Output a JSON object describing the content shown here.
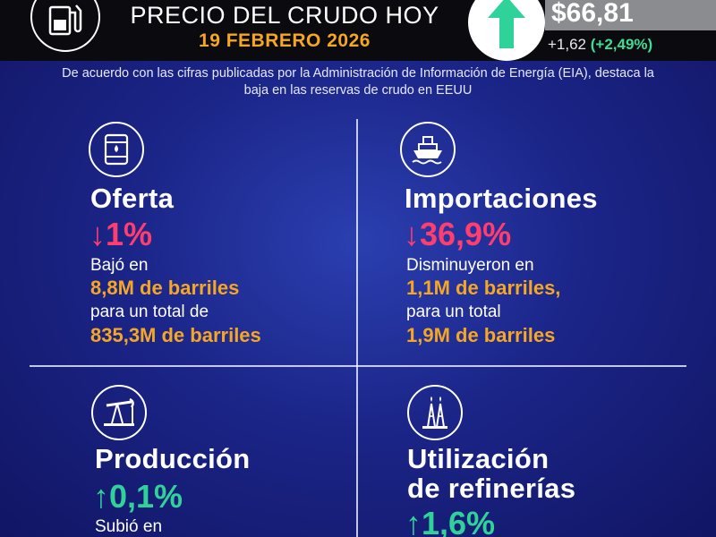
{
  "header": {
    "title": "PRECIO DEL CRUDO HOY",
    "date": "19 FEBRERO 2026",
    "price": "$66,81",
    "change_abs": "+1,62",
    "change_pct": "(+2,49%)",
    "pump_icon": "fuel-pump-icon",
    "arrow_icon": "arrow-up-icon"
  },
  "intro": "De acuerdo con las cifras publicadas por la Administración de Información de Energía (EIA), destaca la baja en las reservas de crudo en EEUU",
  "sections": {
    "oferta": {
      "icon": "oil-barrel-icon",
      "title": "Oferta",
      "change": "↓1%",
      "line1": "Bajó en",
      "line2": "8,8M de barriles",
      "line3": "para un total de",
      "line4": "835,3M de barriles"
    },
    "importaciones": {
      "icon": "ship-icon",
      "title": "Importaciones",
      "change": "↓36,9%",
      "line1": "Disminuyeron en",
      "line2": "1,1M de barriles,",
      "line3": "para un total",
      "line4": "1,9M de barriles"
    },
    "produccion": {
      "icon": "pumpjack-icon",
      "title": "Producción",
      "change": "↑0,1%",
      "line1": "Subió en"
    },
    "refinerias": {
      "icon": "refinery-icon",
      "title_line1": "Utilización",
      "title_line2": "de refinerías",
      "change": "↑1,6%"
    }
  },
  "colors": {
    "accent_orange": "#f5a623",
    "down_red": "#ff3d6e",
    "up_green": "#2fd39a",
    "background_blue": "#1b2588"
  }
}
